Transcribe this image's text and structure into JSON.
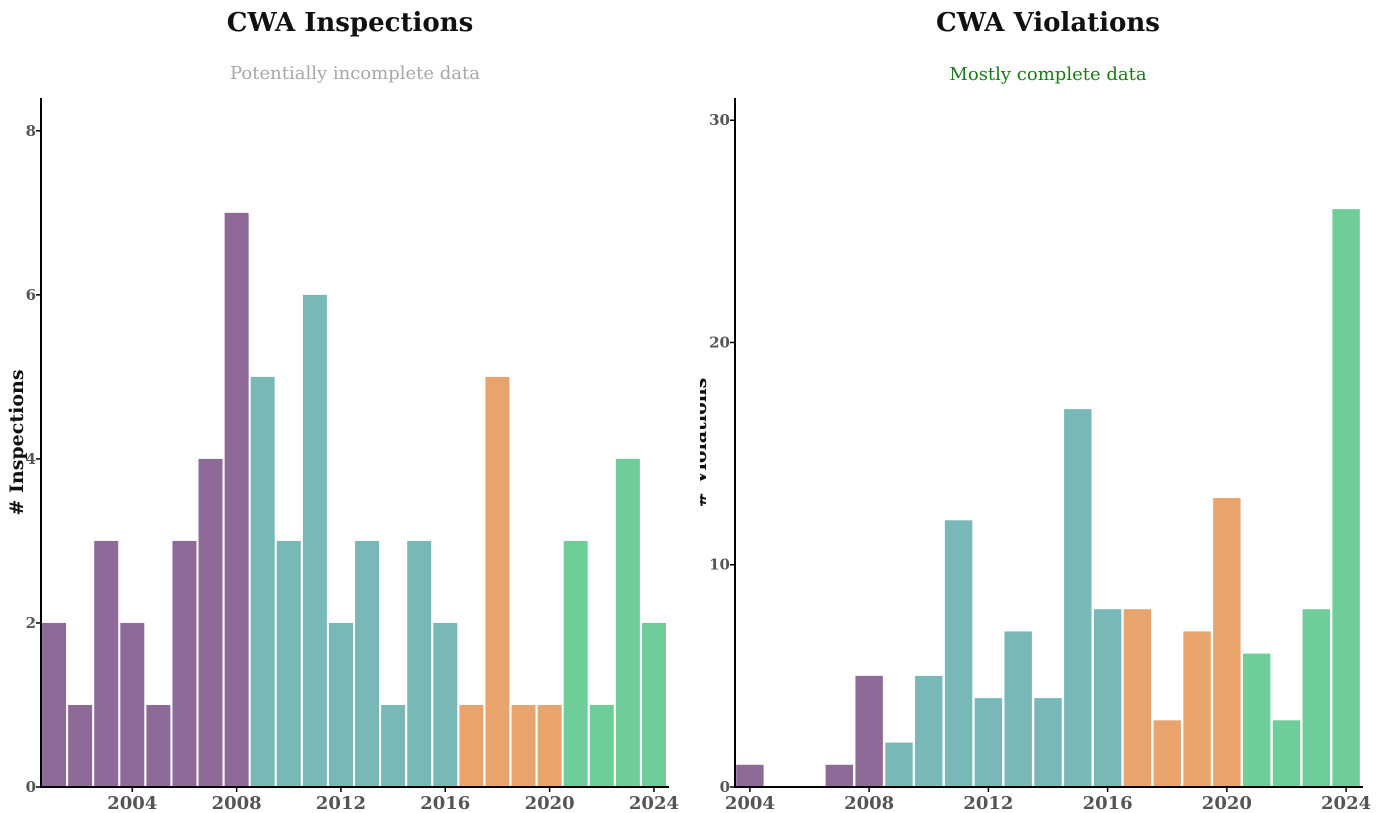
{
  "colors": {
    "purple": "#8d6a98",
    "teal": "#78b9b8",
    "orange": "#e9a46e",
    "green": "#6fcd9a",
    "subtitle_gray": "#a8a8a8",
    "subtitle_green": "#1a7a1a"
  },
  "chart_data": [
    {
      "type": "bar",
      "title": "CWA Inspections",
      "subtitle": "Potentially incomplete data",
      "subtitle_color": "gray",
      "xlabel": "",
      "ylabel": "# Inspections",
      "ylim": [
        0,
        8.4
      ],
      "yticks": [
        0,
        2,
        4,
        6,
        8
      ],
      "xticks": [
        2004,
        2008,
        2012,
        2016,
        2020,
        2024
      ],
      "xlim": [
        2000.5,
        2024.5
      ],
      "grid": false,
      "x": [
        2001,
        2002,
        2003,
        2004,
        2005,
        2006,
        2007,
        2008,
        2009,
        2010,
        2011,
        2012,
        2013,
        2014,
        2015,
        2016,
        2017,
        2018,
        2019,
        2020,
        2021,
        2022,
        2023,
        2024
      ],
      "values": [
        2,
        1,
        3,
        2,
        1,
        3,
        4,
        7,
        5,
        3,
        6,
        2,
        3,
        1,
        3,
        2,
        1,
        5,
        1,
        1,
        3,
        1,
        4,
        2
      ],
      "bar_colors": [
        "purple",
        "purple",
        "purple",
        "purple",
        "purple",
        "purple",
        "purple",
        "purple",
        "teal",
        "teal",
        "teal",
        "teal",
        "teal",
        "teal",
        "teal",
        "teal",
        "orange",
        "orange",
        "orange",
        "orange",
        "green",
        "green",
        "green",
        "green"
      ]
    },
    {
      "type": "bar",
      "title": "CWA Violations",
      "subtitle": "Mostly complete data",
      "subtitle_color": "green",
      "xlabel": "",
      "ylabel": "# Violations",
      "ylim": [
        0,
        31
      ],
      "yticks": [
        0,
        10,
        20,
        30
      ],
      "xticks": [
        2004,
        2008,
        2012,
        2016,
        2020,
        2024
      ],
      "xlim": [
        2003.5,
        2024.5
      ],
      "grid": false,
      "x": [
        2004,
        2007,
        2008,
        2009,
        2010,
        2011,
        2012,
        2013,
        2014,
        2015,
        2016,
        2017,
        2018,
        2019,
        2020,
        2021,
        2022,
        2023,
        2024
      ],
      "values": [
        1,
        1,
        5,
        2,
        5,
        12,
        4,
        7,
        4,
        17,
        8,
        8,
        3,
        7,
        13,
        6,
        3,
        8,
        26
      ],
      "bar_colors": [
        "purple",
        "purple",
        "purple",
        "teal",
        "teal",
        "teal",
        "teal",
        "teal",
        "teal",
        "teal",
        "teal",
        "orange",
        "orange",
        "orange",
        "orange",
        "green",
        "green",
        "green",
        "green"
      ]
    }
  ]
}
